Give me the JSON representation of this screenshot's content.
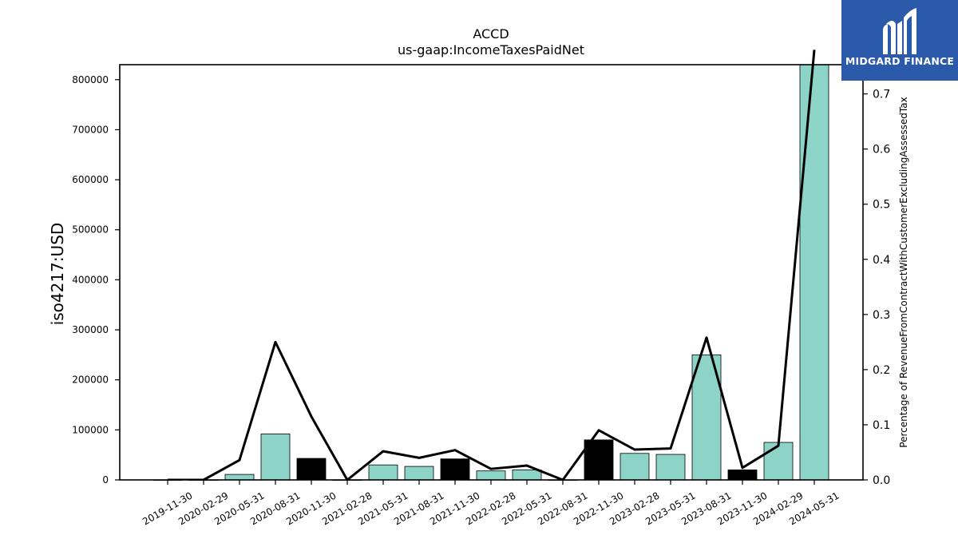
{
  "chart_data": {
    "type": "bar",
    "title": "ACCD",
    "subtitle": "us-gaap:IncomeTaxesPaidNet",
    "ylabel": "iso4217:USD",
    "y2label": "Percentage of RevenueFromContractWithCustomerExcludingAssessedTax",
    "categories": [
      "2019-11-30",
      "2020-02-29",
      "2020-05-31",
      "2020-08-31",
      "2020-11-30",
      "2021-02-28",
      "2021-05-31",
      "2021-08-31",
      "2021-11-30",
      "2022-02-28",
      "2022-05-31",
      "2022-08-31",
      "2022-11-30",
      "2023-02-28",
      "2023-05-31",
      "2023-08-31",
      "2023-11-30",
      "2024-02-29",
      "2024-05-31"
    ],
    "values": [
      0,
      0,
      11000,
      92000,
      43000,
      0,
      30000,
      27000,
      42000,
      18000,
      20000,
      0,
      80000,
      53000,
      51000,
      250000,
      20000,
      75000,
      830000
    ],
    "bar_colors": [
      "#8dd3c7",
      "#8dd3c7",
      "#8dd3c7",
      "#8dd3c7",
      "#000000",
      "#8dd3c7",
      "#8dd3c7",
      "#8dd3c7",
      "#000000",
      "#8dd3c7",
      "#8dd3c7",
      "#8dd3c7",
      "#000000",
      "#8dd3c7",
      "#8dd3c7",
      "#8dd3c7",
      "#000000",
      "#8dd3c7",
      "#8dd3c7"
    ],
    "series": [
      {
        "values": [
          0.0,
          0.0,
          0.036,
          0.25,
          0.115,
          0.0,
          0.052,
          0.04,
          0.054,
          0.02,
          0.026,
          0.0,
          0.09,
          0.055,
          0.057,
          0.258,
          0.022,
          0.062,
          0.78
        ]
      }
    ],
    "ylim": [
      0,
      830000
    ],
    "y2lim": [
      0,
      0.753
    ],
    "yticks": [
      0,
      100000,
      200000,
      300000,
      400000,
      500000,
      600000,
      700000,
      800000
    ],
    "y2ticks": [
      "0.0",
      "0.1",
      "0.2",
      "0.3",
      "0.4",
      "0.5",
      "0.6",
      "0.7"
    ],
    "grid": false,
    "colors": {
      "bar": "#8dd3c7",
      "bar_highlight": "#000000",
      "line": "#000000"
    }
  },
  "logo": {
    "text": "MIDGARD FINANCE",
    "background": "#2b5aab"
  }
}
